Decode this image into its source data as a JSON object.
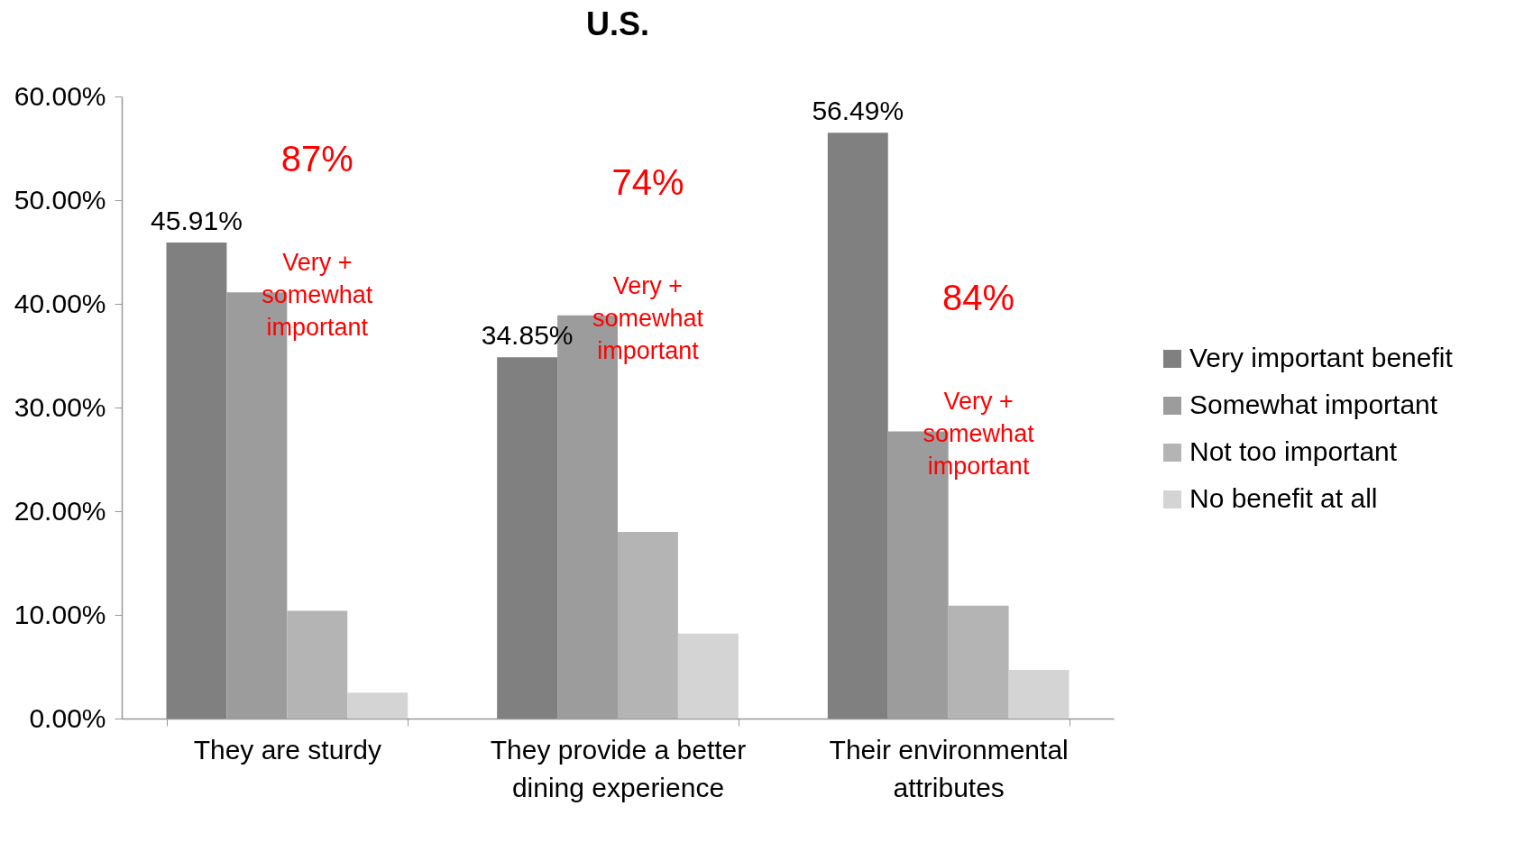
{
  "chart_data": {
    "type": "bar",
    "title": "U.S.",
    "categories": [
      "They are sturdy",
      "They provide a better dining experience",
      "Their environmental attributes"
    ],
    "series": [
      {
        "name": "Very important benefit",
        "color": "#808080",
        "values": [
          45.91,
          34.85,
          56.49
        ],
        "value_labels": [
          "45.91%",
          "34.85%",
          "56.49%"
        ]
      },
      {
        "name": "Somewhat important",
        "color": "#9c9c9c",
        "values": [
          41.1,
          38.9,
          27.7
        ]
      },
      {
        "name": "Not too important",
        "color": "#b4b4b4",
        "values": [
          10.4,
          18.0,
          10.9
        ]
      },
      {
        "name": "No benefit at all",
        "color": "#d4d4d4",
        "values": [
          2.5,
          8.2,
          4.7
        ]
      }
    ],
    "ylim": [
      0,
      60
    ],
    "yticks": [
      {
        "value": 0,
        "label": "0.00%"
      },
      {
        "value": 10,
        "label": "10.00%"
      },
      {
        "value": 20,
        "label": "20.00%"
      },
      {
        "value": 30,
        "label": "30.00%"
      },
      {
        "value": 40,
        "label": "40.00%"
      },
      {
        "value": 50,
        "label": "50.00%"
      },
      {
        "value": 60,
        "label": "60.00%"
      }
    ],
    "annotations": [
      "87%",
      "Very + somewhat important",
      "74%",
      "Very + somewhat important",
      "84%",
      "Very + somewhat important"
    ],
    "grid": false,
    "legend": "right"
  }
}
